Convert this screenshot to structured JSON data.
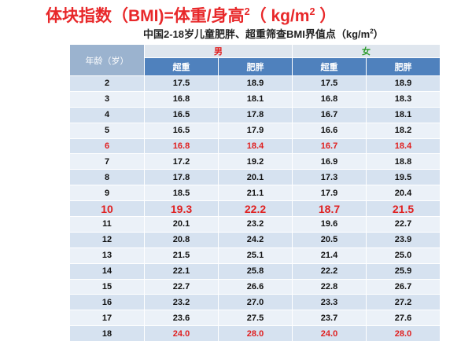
{
  "title": {
    "text": "体块指数（BMI)=体重/身高",
    "sup": "2",
    "unit": "（ kg/m",
    "unit_sup": "2",
    "close": " ）"
  },
  "subtitle": {
    "text": "中国2-18岁儿童肥胖、超重筛查BMI界值点（kg/m",
    "sup": "2",
    "close": "）"
  },
  "table": {
    "age_header": "年龄（岁）",
    "groups": [
      {
        "label": "男",
        "color": "#e02020"
      },
      {
        "label": "女",
        "color": "#2a9a2a"
      }
    ],
    "subheaders": [
      "超重",
      "肥胖",
      "超重",
      "肥胖"
    ],
    "rows": [
      {
        "age": "2",
        "values": [
          "17.5",
          "18.9",
          "17.5",
          "18.9"
        ]
      },
      {
        "age": "3",
        "values": [
          "16.8",
          "18.1",
          "16.8",
          "18.3"
        ]
      },
      {
        "age": "4",
        "values": [
          "16.5",
          "17.8",
          "16.7",
          "18.1"
        ]
      },
      {
        "age": "5",
        "values": [
          "16.5",
          "17.9",
          "16.6",
          "18.2"
        ]
      },
      {
        "age": "6",
        "values": [
          "16.8",
          "18.4",
          "16.7",
          "18.4"
        ],
        "age_color": "#e02020",
        "value_color": "#e02020"
      },
      {
        "age": "7",
        "values": [
          "17.2",
          "19.2",
          "16.9",
          "18.8"
        ]
      },
      {
        "age": "8",
        "values": [
          "17.8",
          "20.1",
          "17.3",
          "19.5"
        ]
      },
      {
        "age": "9",
        "values": [
          "18.5",
          "21.1",
          "17.9",
          "20.4"
        ]
      },
      {
        "age": "10",
        "values": [
          "19.3",
          "22.2",
          "18.7",
          "21.5"
        ],
        "age_color": "#e02020",
        "value_color": "#e02020",
        "large": true
      },
      {
        "age": "11",
        "values": [
          "20.1",
          "23.2",
          "19.6",
          "22.7"
        ]
      },
      {
        "age": "12",
        "values": [
          "20.8",
          "24.2",
          "20.5",
          "23.9"
        ]
      },
      {
        "age": "13",
        "values": [
          "21.5",
          "25.1",
          "21.4",
          "25.0"
        ]
      },
      {
        "age": "14",
        "values": [
          "22.1",
          "25.8",
          "22.2",
          "25.9"
        ]
      },
      {
        "age": "15",
        "values": [
          "22.7",
          "26.6",
          "22.8",
          "26.7"
        ]
      },
      {
        "age": "16",
        "values": [
          "23.2",
          "27.0",
          "23.3",
          "27.2"
        ]
      },
      {
        "age": "17",
        "values": [
          "23.6",
          "27.5",
          "23.7",
          "27.6"
        ]
      },
      {
        "age": "18",
        "values": [
          "24.0",
          "28.0",
          "24.0",
          "28.0"
        ],
        "value_color": "#e02020"
      }
    ]
  }
}
